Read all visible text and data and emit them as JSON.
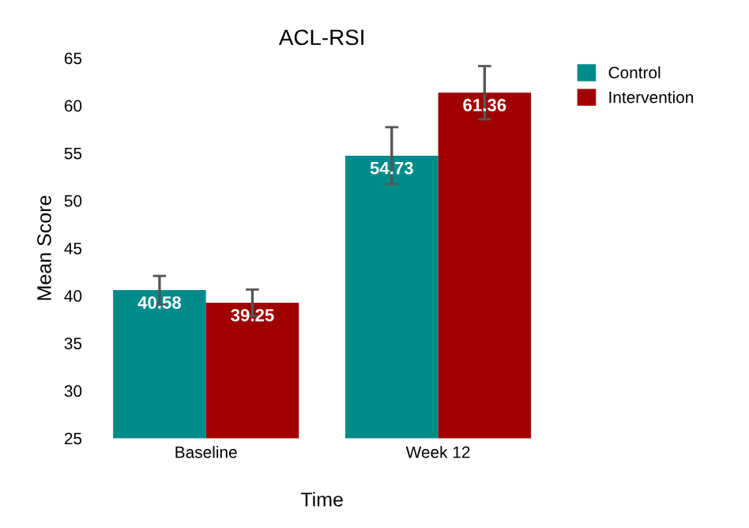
{
  "chart_data": {
    "type": "bar",
    "title": "ACL-RSI",
    "xlabel": "Time",
    "ylabel": "Mean Score",
    "categories": [
      "Baseline",
      "Week 12"
    ],
    "series": [
      {
        "name": "Control",
        "color": "#008b8b",
        "values": [
          40.58,
          54.73
        ],
        "errors": [
          1.5,
          3.0
        ]
      },
      {
        "name": "Intervention",
        "color": "#a00000",
        "values": [
          39.25,
          61.36
        ],
        "errors": [
          1.4,
          2.8
        ]
      }
    ],
    "ylim": [
      25,
      65
    ],
    "yticks": [
      25,
      30,
      35,
      40,
      45,
      50,
      55,
      60,
      65
    ],
    "data_labels": true,
    "legend": "top right",
    "grid": false
  }
}
